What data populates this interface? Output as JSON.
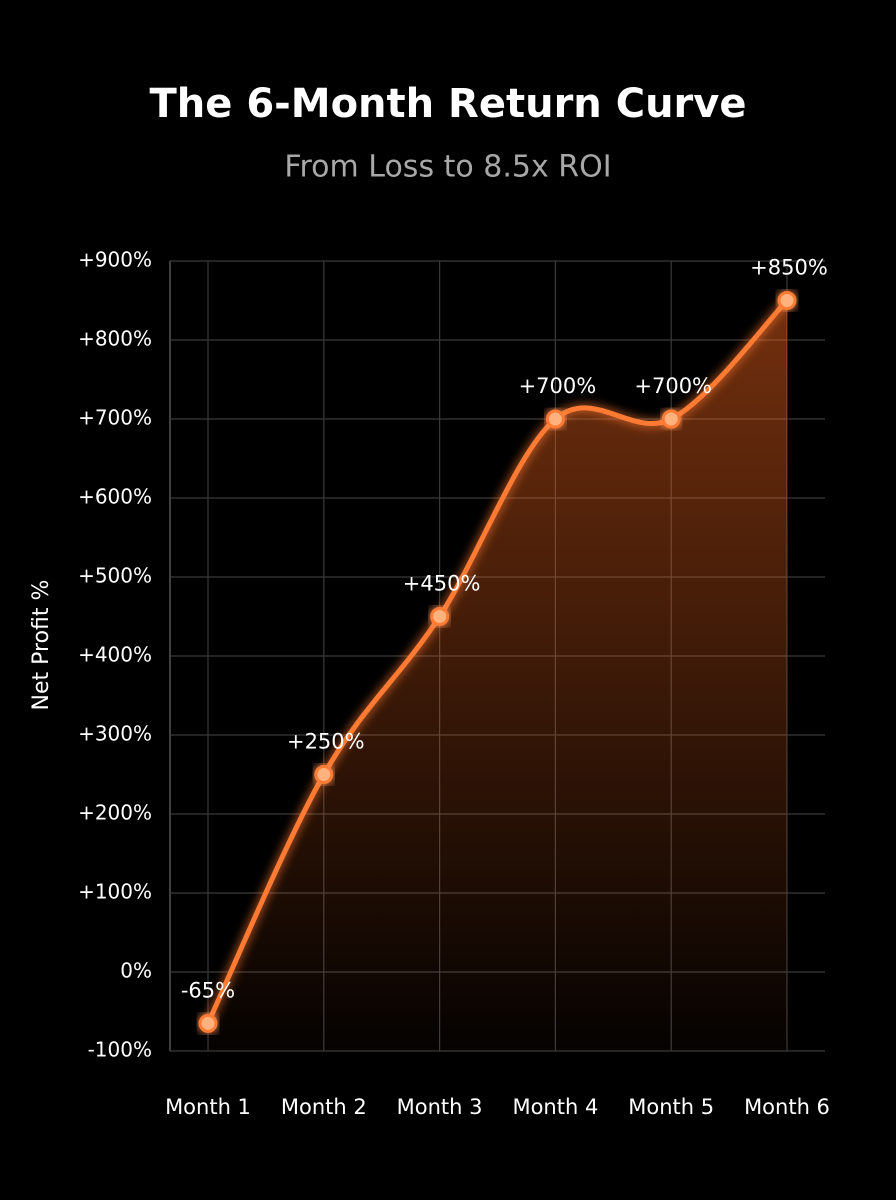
{
  "chart_data": {
    "type": "line",
    "title": "The 6-Month Return Curve",
    "subtitle": "From Loss to 8.5x ROI",
    "y_label": "Net Profit %",
    "categories": [
      "Month 1",
      "Month 2",
      "Month 3",
      "Month 4",
      "Month 5",
      "Month 6"
    ],
    "values": [
      -65,
      250,
      450,
      700,
      700,
      850
    ],
    "value_labels": [
      "-65%",
      "+250%",
      "+450%",
      "+700%",
      "+700%",
      "+850%"
    ],
    "color": "#ff7a33",
    "ylim": [
      -100,
      900
    ],
    "yticks": [
      {
        "value": -100,
        "label": "-100%"
      },
      {
        "value": 0,
        "label": "0%"
      },
      {
        "value": 100,
        "label": "+100%"
      },
      {
        "value": 200,
        "label": "+200%"
      },
      {
        "value": 300,
        "label": "+300%"
      },
      {
        "value": 400,
        "label": "+400%"
      },
      {
        "value": 500,
        "label": "+500%"
      },
      {
        "value": 600,
        "label": "+600%"
      },
      {
        "value": 700,
        "label": "+700%"
      },
      {
        "value": 800,
        "label": "+800%"
      },
      {
        "value": 900,
        "label": "+900%"
      }
    ],
    "grid": true
  }
}
